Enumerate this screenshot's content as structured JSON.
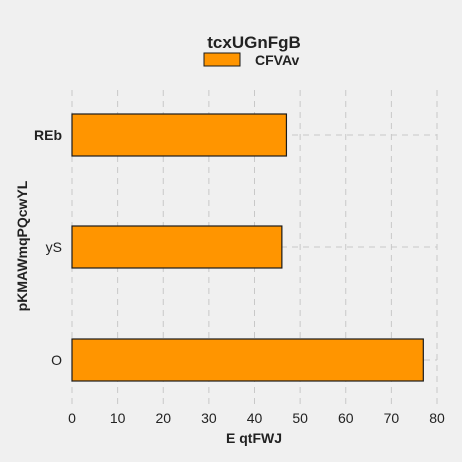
{
  "chart_data": {
    "type": "bar",
    "orientation": "horizontal",
    "title": "tcxUGnFgB",
    "xlabel": "E qtFWJ",
    "ylabel": "pKMAWmqPQcwYL",
    "categories": [
      "REb",
      "yS",
      "O"
    ],
    "series": [
      {
        "name": "CFVAv",
        "values": [
          47,
          46,
          77
        ],
        "color": "#ff9500"
      }
    ],
    "xlim": [
      0,
      80
    ],
    "xticks": [
      "0",
      "10",
      "20",
      "30",
      "40",
      "50",
      "60",
      "70",
      "80"
    ],
    "grid": true,
    "legend_position": "top-center",
    "background": "#f0f0f0",
    "bar_edge_color": "#1a1a1a"
  }
}
